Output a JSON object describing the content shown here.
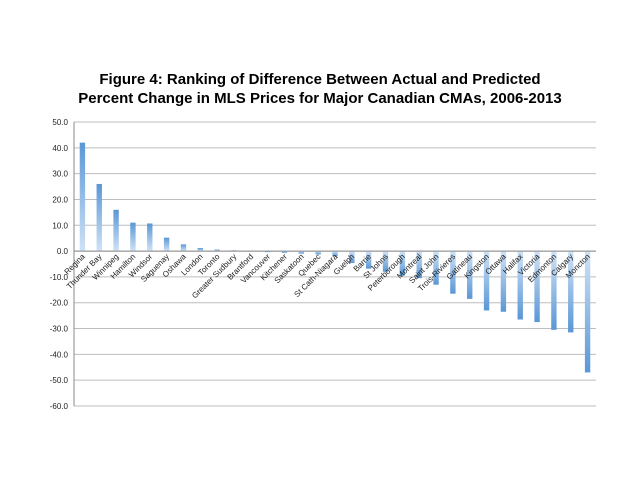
{
  "chart_data": {
    "type": "bar",
    "title_lines": [
      "Figure 4: Ranking of Difference Between Actual and Predicted",
      "Percent Change in MLS Prices for Major Canadian CMAs, 2006-2013"
    ],
    "xlabel": "",
    "ylabel": "",
    "ylim": [
      -60,
      50
    ],
    "yticks": [
      "50.0",
      "40.0",
      "30.0",
      "20.0",
      "10.0",
      "0.0",
      "-10.0",
      "-20.0",
      "-30.0",
      "-40.0",
      "-50.0",
      "-60.0"
    ],
    "grid": true,
    "legend": "none",
    "bar_color": "#5b9bd5",
    "categories": [
      "Regina",
      "Thunder Bay",
      "Winnipeg",
      "Hamilton",
      "Windsor",
      "Saguenay",
      "Oshawa",
      "London",
      "Toronto",
      "Greater Sudbury",
      "Brantford",
      "Vancouver",
      "Kitchener",
      "Saskatoon",
      "Quebec",
      "St Cath-Niagara",
      "Guelph",
      "Barrie",
      "St Johns",
      "Peterborough",
      "Montreal",
      "Saint John",
      "Trois-Rivieres",
      "Gatineau",
      "Kingston",
      "Ottawa",
      "Halifax",
      "Victoria",
      "Edmonton",
      "Calgary",
      "Moncton"
    ],
    "values": [
      42.0,
      26.0,
      16.0,
      11.0,
      10.7,
      5.2,
      2.6,
      1.2,
      0.6,
      0.3,
      0.0,
      -0.4,
      -0.7,
      -1.0,
      -1.3,
      -2.0,
      -4.6,
      -6.8,
      -8.0,
      -9.5,
      -10.5,
      -13.0,
      -16.5,
      -18.5,
      -23.0,
      -23.5,
      -26.5,
      -27.5,
      -30.5,
      -31.5,
      -47.0
    ]
  }
}
